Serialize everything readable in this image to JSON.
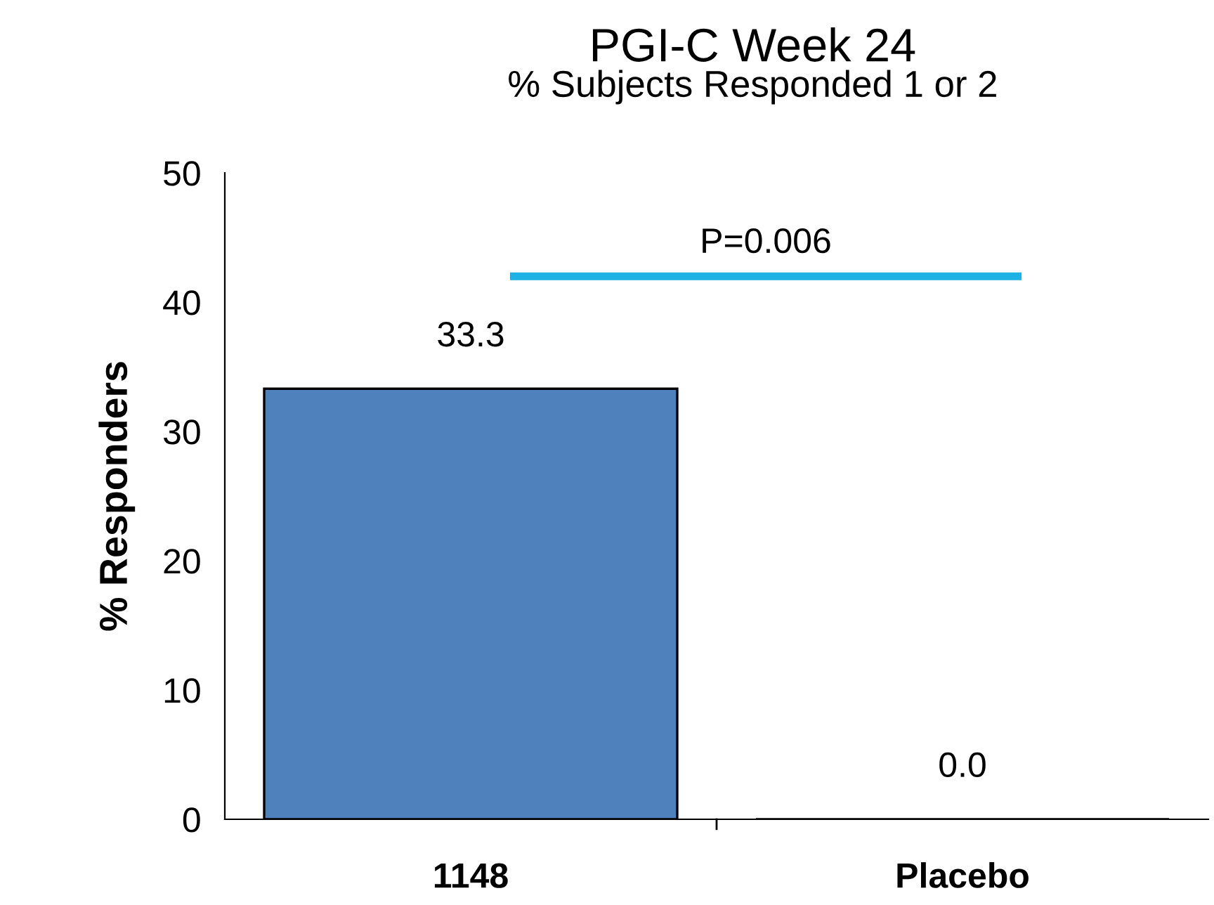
{
  "chart_data": {
    "type": "bar",
    "title": "PGI-C Week 24",
    "subtitle": "% Subjects Responded 1 or 2",
    "ylabel": "% Responders",
    "categories": [
      "1148",
      "Placebo"
    ],
    "series": [
      {
        "color": "#4f81bd",
        "values": [
          33.3,
          0.0
        ]
      }
    ],
    "value_labels": [
      "33.3",
      "0.0"
    ],
    "ylim": [
      0,
      50
    ],
    "yticks": [
      0,
      10,
      20,
      30,
      40,
      50
    ],
    "grid": false,
    "legend": false,
    "annotations": [
      "P=0.006"
    ]
  }
}
